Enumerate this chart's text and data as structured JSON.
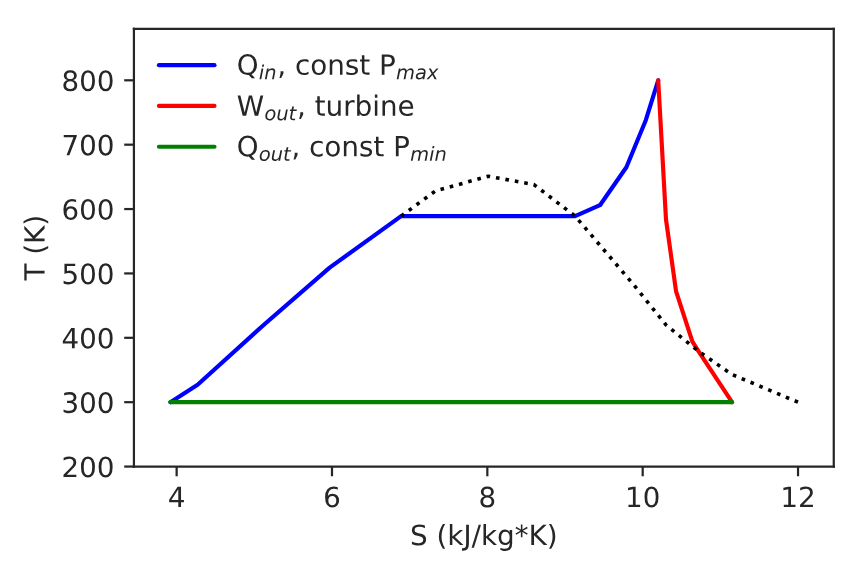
{
  "chart_data": {
    "type": "line",
    "xlabel": "S (kJ/kg*K)",
    "ylabel": "T (K)",
    "xlim": [
      3.45,
      12.46
    ],
    "ylim": [
      200,
      880
    ],
    "xticks": [
      4,
      6,
      8,
      10,
      12
    ],
    "yticks": [
      200,
      300,
      400,
      500,
      600,
      700,
      800
    ],
    "grid": false,
    "legend": "top left",
    "marker": "none",
    "series": [
      {
        "name": "Q$_{in}$, const P$_{max}$",
        "color": "#0000ff",
        "line_style": "solid",
        "x": [
          3.92,
          4.27,
          5.12,
          5.97,
          6.89,
          9.13,
          9.45,
          9.79,
          10.04,
          10.2
        ],
        "values": [
          300,
          327,
          420,
          509,
          589,
          589,
          606,
          665,
          738,
          800
        ]
      },
      {
        "name": "W$_{out}$, turbine",
        "color": "#ff0000",
        "line_style": "solid",
        "x": [
          10.2,
          10.3,
          10.43,
          10.64,
          10.72,
          11.15
        ],
        "values": [
          800,
          584,
          472,
          394,
          379,
          300
        ]
      },
      {
        "name": "Q$_{out}$, const P$_{min}$",
        "color": "#008000",
        "line_style": "solid",
        "x": [
          3.92,
          11.15
        ],
        "values": [
          300,
          300
        ]
      },
      {
        "color": "#000000",
        "line_style": "dotted",
        "x": [
          6.89,
          7.33,
          8.01,
          8.6,
          9.13,
          9.88,
          10.3,
          10.72,
          11.15,
          12.0
        ],
        "values": [
          589,
          628,
          651,
          638,
          589,
          483,
          420,
          379,
          343,
          300
        ]
      }
    ]
  }
}
